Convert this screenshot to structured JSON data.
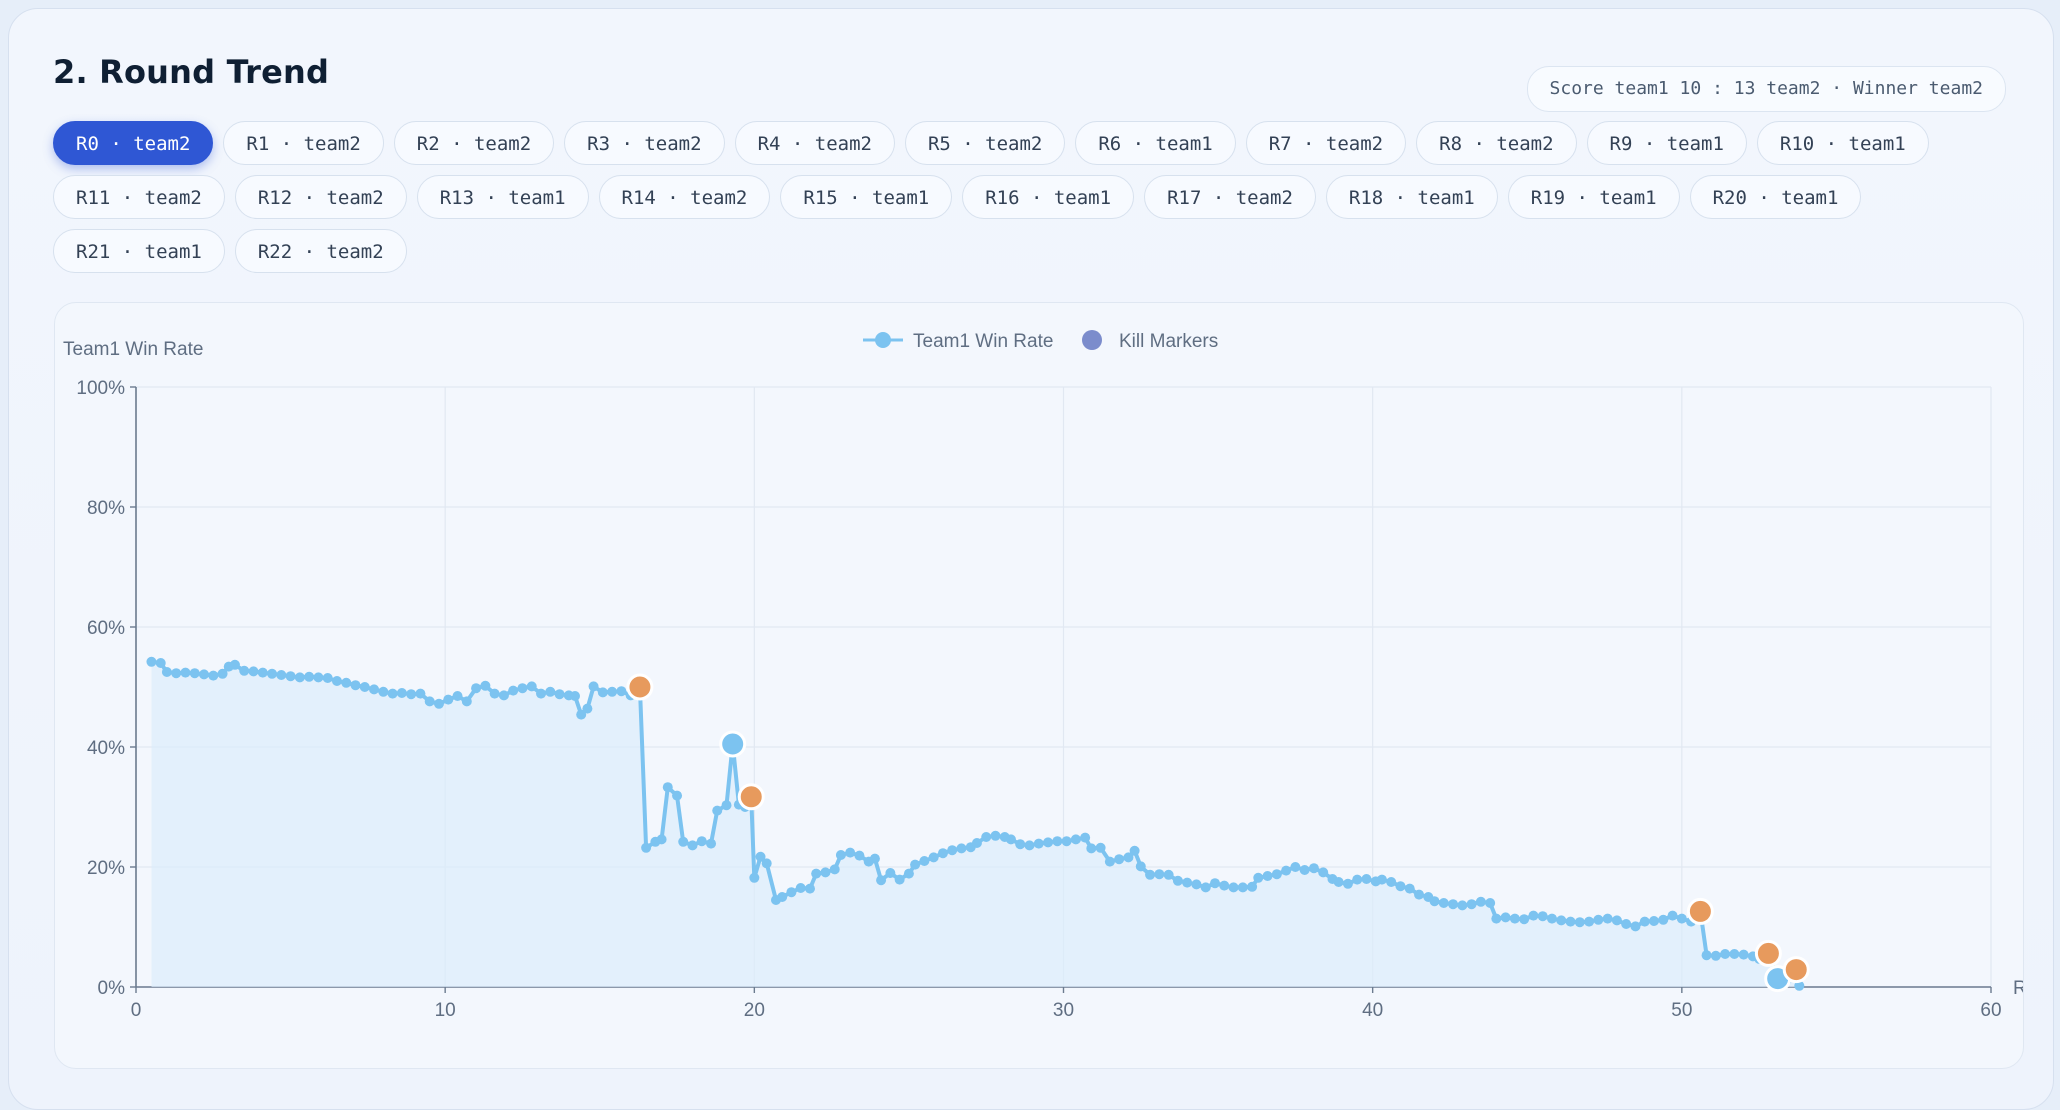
{
  "section": {
    "title": "2. Round Trend",
    "score_text": "Score team1 10 : 13 team2 · Winner team2"
  },
  "rounds": [
    {
      "label": "R0 · team2",
      "active": true
    },
    {
      "label": "R1 · team2"
    },
    {
      "label": "R2 · team2"
    },
    {
      "label": "R3 · team2"
    },
    {
      "label": "R4 · team2"
    },
    {
      "label": "R5 · team2"
    },
    {
      "label": "R6 · team1"
    },
    {
      "label": "R7 · team2"
    },
    {
      "label": "R8 · team2"
    },
    {
      "label": "R9 · team1"
    },
    {
      "label": "R10 · team1"
    },
    {
      "label": "R11 · team2"
    },
    {
      "label": "R12 · team2"
    },
    {
      "label": "R13 · team1"
    },
    {
      "label": "R14 · team2"
    },
    {
      "label": "R15 · team1"
    },
    {
      "label": "R16 · team1"
    },
    {
      "label": "R17 · team2"
    },
    {
      "label": "R18 · team1"
    },
    {
      "label": "R19 · team1"
    },
    {
      "label": "R20 · team1"
    },
    {
      "label": "R21 · team1"
    },
    {
      "label": "R22 · team2"
    }
  ],
  "colors": {
    "line": "#7cc3f0",
    "area": "#dcecfb",
    "kill_team1": "#7cc3f0",
    "kill_team2": "#e79a5d",
    "legend_kill": "#7b8ccc",
    "active_pill": "#2f57d4"
  },
  "chart_data": {
    "type": "line",
    "title": "",
    "ylabel": "Team1 Win Rate",
    "xlabel": "R",
    "xlim": [
      0,
      60
    ],
    "ylim": [
      0,
      100
    ],
    "x_ticks": [
      "0",
      "10",
      "20",
      "30",
      "40",
      "50",
      "60"
    ],
    "y_ticks": [
      "0%",
      "20%",
      "40%",
      "60%",
      "80%",
      "100%"
    ],
    "grid": true,
    "legend": [
      "Team1 Win Rate",
      "Kill Markers"
    ],
    "legend_position": "top-center",
    "series": [
      {
        "name": "Team1 Win Rate",
        "area": true,
        "points": [
          [
            0.5,
            54.2
          ],
          [
            0.8,
            54.0
          ],
          [
            1.0,
            52.5
          ],
          [
            1.3,
            52.3
          ],
          [
            1.6,
            52.4
          ],
          [
            1.9,
            52.3
          ],
          [
            2.2,
            52.1
          ],
          [
            2.5,
            51.9
          ],
          [
            2.8,
            52.2
          ],
          [
            3.0,
            53.4
          ],
          [
            3.2,
            53.7
          ],
          [
            3.5,
            52.7
          ],
          [
            3.8,
            52.6
          ],
          [
            4.1,
            52.4
          ],
          [
            4.4,
            52.2
          ],
          [
            4.7,
            52.0
          ],
          [
            5.0,
            51.8
          ],
          [
            5.3,
            51.6
          ],
          [
            5.6,
            51.7
          ],
          [
            5.9,
            51.6
          ],
          [
            6.2,
            51.5
          ],
          [
            6.5,
            51.0
          ],
          [
            6.8,
            50.7
          ],
          [
            7.1,
            50.3
          ],
          [
            7.4,
            50.0
          ],
          [
            7.7,
            49.6
          ],
          [
            8.0,
            49.2
          ],
          [
            8.3,
            48.9
          ],
          [
            8.6,
            49.0
          ],
          [
            8.9,
            48.8
          ],
          [
            9.2,
            48.9
          ],
          [
            9.5,
            47.6
          ],
          [
            9.8,
            47.2
          ],
          [
            10.1,
            47.9
          ],
          [
            10.4,
            48.5
          ],
          [
            10.7,
            47.6
          ],
          [
            11.0,
            49.8
          ],
          [
            11.3,
            50.2
          ],
          [
            11.6,
            48.9
          ],
          [
            11.9,
            48.6
          ],
          [
            12.2,
            49.4
          ],
          [
            12.5,
            49.8
          ],
          [
            12.8,
            50.1
          ],
          [
            13.1,
            48.9
          ],
          [
            13.4,
            49.2
          ],
          [
            13.7,
            48.8
          ],
          [
            14.0,
            48.6
          ],
          [
            14.2,
            48.5
          ],
          [
            14.4,
            45.4
          ],
          [
            14.6,
            46.4
          ],
          [
            14.8,
            50.1
          ],
          [
            15.1,
            49.1
          ],
          [
            15.4,
            49.2
          ],
          [
            15.7,
            49.3
          ],
          [
            16.0,
            48.6
          ],
          [
            16.3,
            50.0
          ],
          [
            16.5,
            23.2
          ],
          [
            16.8,
            24.2
          ],
          [
            17.0,
            24.6
          ],
          [
            17.2,
            33.3
          ],
          [
            17.5,
            31.9
          ],
          [
            17.7,
            24.2
          ],
          [
            18.0,
            23.6
          ],
          [
            18.3,
            24.3
          ],
          [
            18.6,
            23.9
          ],
          [
            18.8,
            29.4
          ],
          [
            19.1,
            30.3
          ],
          [
            19.3,
            40.5
          ],
          [
            19.5,
            30.4
          ],
          [
            19.7,
            30.0
          ],
          [
            19.9,
            31.7
          ],
          [
            20.0,
            18.2
          ],
          [
            20.2,
            21.7
          ],
          [
            20.4,
            20.6
          ],
          [
            20.7,
            14.5
          ],
          [
            20.9,
            15.0
          ],
          [
            21.2,
            15.8
          ],
          [
            21.5,
            16.5
          ],
          [
            21.8,
            16.4
          ],
          [
            22.0,
            18.9
          ],
          [
            22.3,
            19.1
          ],
          [
            22.6,
            19.6
          ],
          [
            22.8,
            22.0
          ],
          [
            23.1,
            22.4
          ],
          [
            23.4,
            21.9
          ],
          [
            23.7,
            20.9
          ],
          [
            23.9,
            21.4
          ],
          [
            24.1,
            17.8
          ],
          [
            24.4,
            19.0
          ],
          [
            24.7,
            17.9
          ],
          [
            25.0,
            18.9
          ],
          [
            25.2,
            20.4
          ],
          [
            25.5,
            21.0
          ],
          [
            25.8,
            21.6
          ],
          [
            26.1,
            22.3
          ],
          [
            26.4,
            22.8
          ],
          [
            26.7,
            23.1
          ],
          [
            27.0,
            23.3
          ],
          [
            27.2,
            24.0
          ],
          [
            27.5,
            25.0
          ],
          [
            27.8,
            25.2
          ],
          [
            28.1,
            25.0
          ],
          [
            28.3,
            24.6
          ],
          [
            28.6,
            23.8
          ],
          [
            28.9,
            23.6
          ],
          [
            29.2,
            23.9
          ],
          [
            29.5,
            24.1
          ],
          [
            29.8,
            24.3
          ],
          [
            30.1,
            24.3
          ],
          [
            30.4,
            24.6
          ],
          [
            30.7,
            24.9
          ],
          [
            30.9,
            23.1
          ],
          [
            31.2,
            23.2
          ],
          [
            31.5,
            20.9
          ],
          [
            31.8,
            21.3
          ],
          [
            32.1,
            21.6
          ],
          [
            32.3,
            22.7
          ],
          [
            32.5,
            20.1
          ],
          [
            32.8,
            18.7
          ],
          [
            33.1,
            18.8
          ],
          [
            33.4,
            18.7
          ],
          [
            33.7,
            17.7
          ],
          [
            34.0,
            17.4
          ],
          [
            34.3,
            17.1
          ],
          [
            34.6,
            16.6
          ],
          [
            34.9,
            17.3
          ],
          [
            35.2,
            16.9
          ],
          [
            35.5,
            16.6
          ],
          [
            35.8,
            16.6
          ],
          [
            36.1,
            16.7
          ],
          [
            36.3,
            18.2
          ],
          [
            36.6,
            18.5
          ],
          [
            36.9,
            18.8
          ],
          [
            37.2,
            19.4
          ],
          [
            37.5,
            20.0
          ],
          [
            37.8,
            19.5
          ],
          [
            38.1,
            19.8
          ],
          [
            38.4,
            19.1
          ],
          [
            38.7,
            18.0
          ],
          [
            38.9,
            17.5
          ],
          [
            39.2,
            17.2
          ],
          [
            39.5,
            17.9
          ],
          [
            39.8,
            18.0
          ],
          [
            40.1,
            17.6
          ],
          [
            40.3,
            17.9
          ],
          [
            40.6,
            17.5
          ],
          [
            40.9,
            16.8
          ],
          [
            41.2,
            16.4
          ],
          [
            41.5,
            15.4
          ],
          [
            41.8,
            15.0
          ],
          [
            42.0,
            14.3
          ],
          [
            42.3,
            14.0
          ],
          [
            42.6,
            13.8
          ],
          [
            42.9,
            13.6
          ],
          [
            43.2,
            13.8
          ],
          [
            43.5,
            14.2
          ],
          [
            43.8,
            14.0
          ],
          [
            44.0,
            11.4
          ],
          [
            44.3,
            11.6
          ],
          [
            44.6,
            11.4
          ],
          [
            44.9,
            11.3
          ],
          [
            45.2,
            11.9
          ],
          [
            45.5,
            11.8
          ],
          [
            45.8,
            11.4
          ],
          [
            46.1,
            11.1
          ],
          [
            46.4,
            10.9
          ],
          [
            46.7,
            10.8
          ],
          [
            47.0,
            10.9
          ],
          [
            47.3,
            11.2
          ],
          [
            47.6,
            11.4
          ],
          [
            47.9,
            11.1
          ],
          [
            48.2,
            10.5
          ],
          [
            48.5,
            10.1
          ],
          [
            48.8,
            10.9
          ],
          [
            49.1,
            11.0
          ],
          [
            49.4,
            11.2
          ],
          [
            49.7,
            11.9
          ],
          [
            50.0,
            11.4
          ],
          [
            50.3,
            10.9
          ],
          [
            50.6,
            12.6
          ],
          [
            50.8,
            5.3
          ],
          [
            51.1,
            5.2
          ],
          [
            51.4,
            5.5
          ],
          [
            51.7,
            5.5
          ],
          [
            52.0,
            5.4
          ],
          [
            52.3,
            5.1
          ],
          [
            52.5,
            4.7
          ],
          [
            52.8,
            5.6
          ],
          [
            53.1,
            1.4
          ],
          [
            53.4,
            1.2
          ],
          [
            53.7,
            2.9
          ],
          [
            53.8,
            0.2
          ]
        ]
      }
    ],
    "kill_markers": [
      {
        "x": 16.3,
        "y": 50.0,
        "team": "team2"
      },
      {
        "x": 19.3,
        "y": 40.5,
        "team": "team1"
      },
      {
        "x": 19.9,
        "y": 31.7,
        "team": "team2"
      },
      {
        "x": 50.6,
        "y": 12.6,
        "team": "team2"
      },
      {
        "x": 52.8,
        "y": 5.6,
        "team": "team2"
      },
      {
        "x": 53.1,
        "y": 1.4,
        "team": "team1"
      },
      {
        "x": 53.7,
        "y": 2.9,
        "team": "team2"
      }
    ]
  }
}
